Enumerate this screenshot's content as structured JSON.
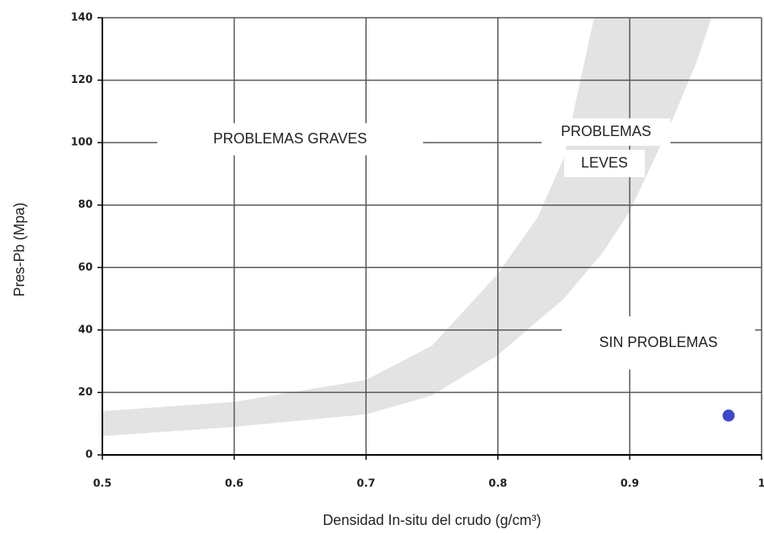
{
  "chart_data": {
    "type": "scatter",
    "xlabel": "Densidad In-situ del crudo (g/cm³)",
    "ylabel": "Pres-Pb (Mpa)",
    "xlim": [
      0.5,
      1
    ],
    "ylim": [
      0,
      140
    ],
    "xticks": [
      0.5,
      0.6,
      0.7,
      0.8,
      0.9,
      1
    ],
    "yticks": [
      0,
      20,
      40,
      60,
      80,
      100,
      120,
      140
    ],
    "grid": true,
    "series": [
      {
        "color": "#3b48c9",
        "x": [
          0.975
        ],
        "values": [
          12.6
        ]
      }
    ],
    "band": {
      "color": "#e3e3e3",
      "x": [
        0.5,
        0.6,
        0.7,
        0.75,
        0.8,
        0.83,
        0.85,
        0.86,
        0.873,
        0.962,
        0.95,
        0.93,
        0.9,
        0.88,
        0.85,
        0.8,
        0.75,
        0.7,
        0.6,
        0.5
      ],
      "y": [
        14,
        17,
        24,
        35,
        58,
        76,
        95,
        115,
        140,
        140,
        125,
        105,
        78,
        65,
        50,
        32,
        19,
        13,
        9,
        6
      ]
    },
    "annotations": [
      "PROBLEMAS GRAVES",
      "PROBLEMAS",
      "LEVES",
      "SIN PROBLEMAS"
    ]
  }
}
